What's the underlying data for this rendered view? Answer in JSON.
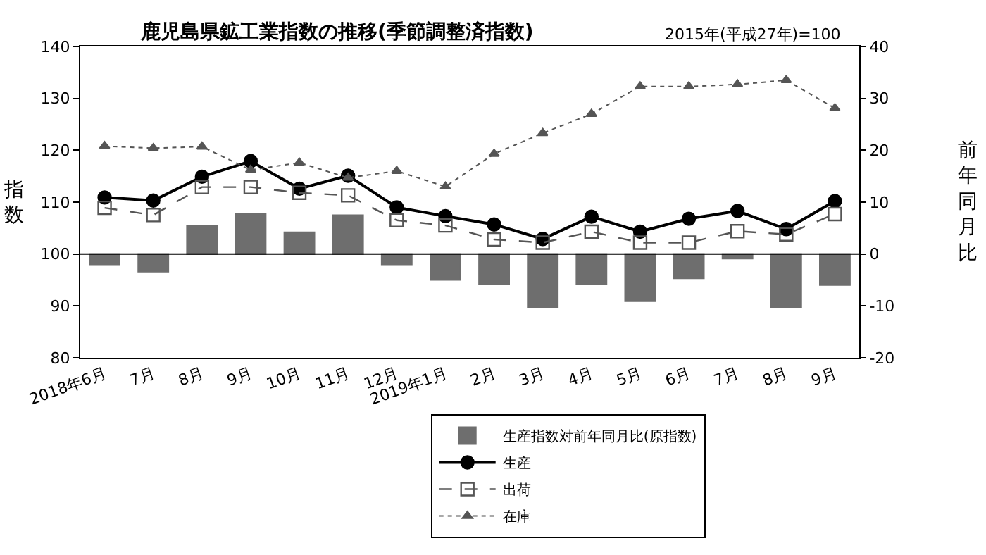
{
  "chart_data": {
    "type": "line",
    "title": "鹿児島県鉱工業指数の推移(季節調整済指数)",
    "subtitle": "2015年(平成27年)=100",
    "ylabel": "指数",
    "y2label": "前年同月比",
    "categories": [
      "2018年6月",
      "7月",
      "8月",
      "9月",
      "10月",
      "11月",
      "12月",
      "2019年1月",
      "2月",
      "3月",
      "4月",
      "5月",
      "6月",
      "7月",
      "8月",
      "9月"
    ],
    "ylim": [
      80,
      140
    ],
    "yticks": [
      80,
      90,
      100,
      110,
      120,
      130,
      140
    ],
    "y2lim": [
      -20,
      40
    ],
    "y2ticks": [
      -20,
      -10,
      0,
      10,
      20,
      30,
      40
    ],
    "legend": "bottom",
    "ref_lines": [
      {
        "axis": "y2",
        "value": 0,
        "color": "#000000",
        "line_style": "solid"
      }
    ],
    "series": [
      {
        "name": "生産指数対前年同月比(原指数)",
        "type": "bar",
        "axis": "y2",
        "color": "#6e6e6e",
        "values": [
          -2.0,
          -3.4,
          5.4,
          7.7,
          4.2,
          7.5,
          -2.0,
          -5.0,
          -5.8,
          -10.3,
          -5.8,
          -9.1,
          -4.7,
          -0.9,
          -10.3,
          -6.0
        ]
      },
      {
        "name": "生産",
        "color": "#000000",
        "marker": "circle",
        "line_style": "solid",
        "values": [
          110.9,
          110.3,
          114.9,
          117.9,
          112.6,
          115.1,
          109.0,
          107.3,
          105.7,
          102.9,
          107.2,
          104.3,
          106.8,
          108.3,
          104.8,
          110.2
        ]
      },
      {
        "name": "出荷",
        "color": "#555555",
        "marker": "square",
        "line_style": "dashed",
        "values": [
          108.9,
          107.5,
          112.9,
          112.9,
          111.8,
          111.3,
          106.5,
          105.5,
          102.8,
          102.2,
          104.3,
          102.2,
          102.2,
          104.4,
          103.8,
          107.7
        ]
      },
      {
        "name": "在庫",
        "color": "#555555",
        "marker": "triangle",
        "line_style": "dotted",
        "values": [
          120.8,
          120.4,
          120.7,
          116.2,
          117.6,
          114.7,
          116.0,
          113.0,
          119.3,
          123.3,
          127.0,
          132.3,
          132.3,
          132.7,
          133.5,
          128.1
        ]
      }
    ]
  }
}
